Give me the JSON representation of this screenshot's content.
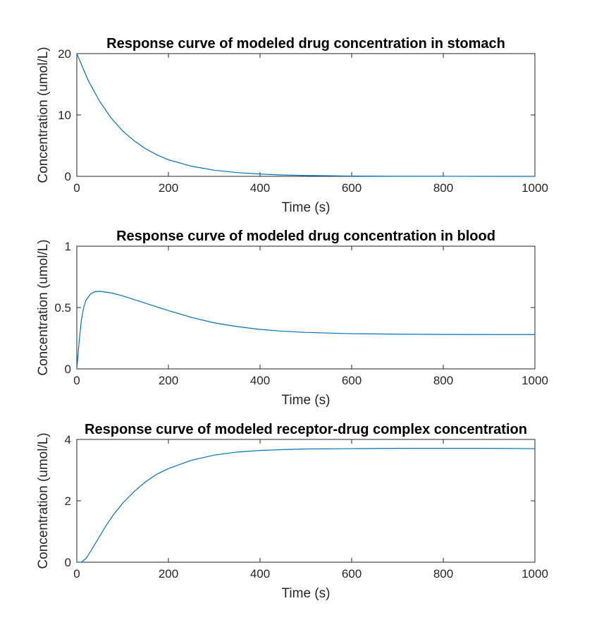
{
  "figure": {
    "series_color": "#0072BD",
    "axis_color": "#262626"
  },
  "chart_data": [
    {
      "type": "line",
      "title": "Response curve of modeled drug concentration in stomach",
      "xlabel": "Time (s)",
      "ylabel": "Concentration (umol/L)",
      "xlim": [
        0,
        1000
      ],
      "ylim": [
        0,
        20
      ],
      "xticks": [
        0,
        200,
        400,
        600,
        800,
        1000
      ],
      "yticks": [
        0,
        10,
        20
      ],
      "grid": false,
      "legend": "none",
      "series": [
        {
          "x": [
            0,
            25,
            50,
            75,
            100,
            125,
            150,
            175,
            200,
            250,
            300,
            350,
            400,
            450,
            500,
            600,
            700,
            800,
            900,
            1000
          ],
          "y": [
            20,
            15.6,
            12.2,
            9.5,
            7.4,
            5.8,
            4.5,
            3.5,
            2.7,
            1.65,
            1.0,
            0.61,
            0.37,
            0.22,
            0.14,
            0.05,
            0.02,
            0.01,
            0.0,
            0.0
          ]
        }
      ]
    },
    {
      "type": "line",
      "title": "Response curve of modeled drug concentration in blood",
      "xlabel": "Time (s)",
      "ylabel": "Concentration (umol/L)",
      "xlim": [
        0,
        1000
      ],
      "ylim": [
        0,
        1
      ],
      "xticks": [
        0,
        200,
        400,
        600,
        800,
        1000
      ],
      "yticks": [
        0,
        0.5,
        1
      ],
      "grid": false,
      "legend": "none",
      "series": [
        {
          "x": [
            0,
            5,
            10,
            15,
            20,
            30,
            40,
            50,
            60,
            80,
            100,
            150,
            200,
            250,
            300,
            350,
            400,
            450,
            500,
            600,
            700,
            800,
            900,
            1000
          ],
          "y": [
            0,
            0.22,
            0.4,
            0.5,
            0.56,
            0.61,
            0.63,
            0.632,
            0.628,
            0.615,
            0.595,
            0.535,
            0.475,
            0.42,
            0.375,
            0.345,
            0.322,
            0.307,
            0.297,
            0.287,
            0.283,
            0.281,
            0.28,
            0.28
          ]
        }
      ]
    },
    {
      "type": "line",
      "title": "Response curve of modeled receptor-drug complex concentration",
      "xlabel": "Time (s)",
      "ylabel": "Concentration (umol/L)",
      "xlim": [
        0,
        1000
      ],
      "ylim": [
        0,
        4
      ],
      "xticks": [
        0,
        200,
        400,
        600,
        800,
        1000
      ],
      "yticks": [
        0,
        2,
        4
      ],
      "grid": false,
      "legend": "none",
      "series": [
        {
          "x": [
            0,
            10,
            20,
            30,
            40,
            50,
            60,
            80,
            100,
            125,
            150,
            175,
            200,
            250,
            300,
            350,
            400,
            450,
            500,
            600,
            700,
            800,
            900,
            1000
          ],
          "y": [
            0,
            0.0,
            0.12,
            0.35,
            0.6,
            0.85,
            1.1,
            1.55,
            1.92,
            2.3,
            2.62,
            2.87,
            3.05,
            3.32,
            3.49,
            3.59,
            3.64,
            3.67,
            3.69,
            3.7,
            3.71,
            3.71,
            3.71,
            3.7
          ]
        }
      ]
    }
  ]
}
